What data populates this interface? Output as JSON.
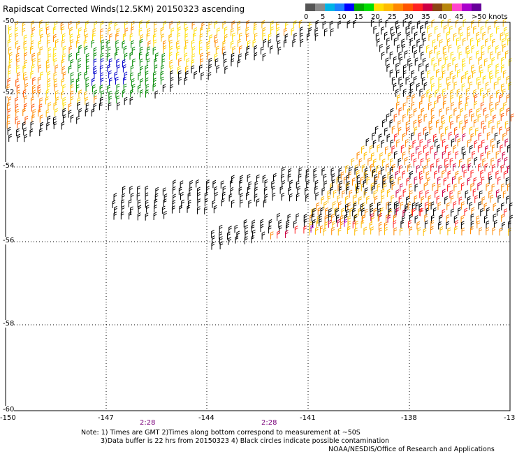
{
  "title": "Rapidscat Corrected Winds(12.5KM) 20150323 ascending",
  "colorbar": {
    "colors": [
      "#555555",
      "#8a8a8a",
      "#00b4e6",
      "#1e7fff",
      "#0000ff",
      "#00aa00",
      "#00dd00",
      "#ffdd00",
      "#ffbb00",
      "#ff8800",
      "#ff5500",
      "#ff2222",
      "#cc0044",
      "#8b4513",
      "#b8860b",
      "#ff44cc",
      "#aa00cc",
      "#660099"
    ],
    "labels": [
      "0",
      "5",
      "10",
      "15",
      "20",
      "25",
      "30",
      "35",
      "40",
      "45",
      ">50 knots"
    ]
  },
  "map": {
    "lat_labels": [
      "-50",
      "-52",
      "-54",
      "-56",
      "-58",
      "-60"
    ],
    "lon_labels": [
      "-150",
      "-147",
      "-144",
      "-141",
      "-138",
      "-13"
    ],
    "time_labels": [
      "2:28",
      "2:28"
    ]
  },
  "notes": {
    "line1": "Note: 1) Times are GMT 2)Times along bottom correspond to measurement at ~50S",
    "line2": "3)Data buffer is 22 hrs from 20150323 4) Black circles indicate possible contamination",
    "line3": "NOAA/NESDIS/Office of Research and Applications"
  }
}
